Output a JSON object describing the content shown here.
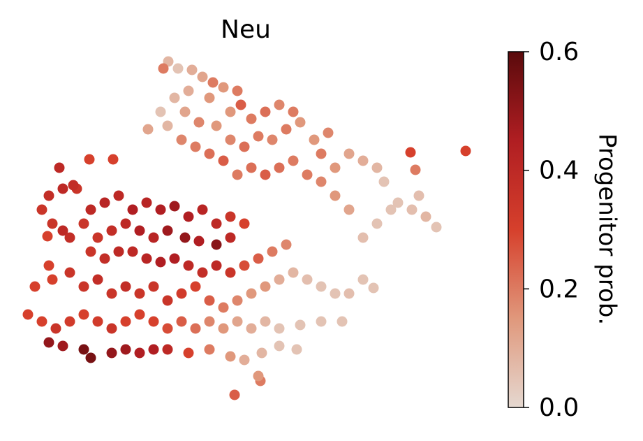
{
  "chart_data": {
    "type": "scatter",
    "title": "Neu",
    "x": [
      241,
      234,
      255,
      275,
      290,
      305,
      320,
      340,
      345,
      330,
      300,
      270,
      250,
      265,
      285,
      310,
      230,
      240,
      212,
      360,
      380,
      400,
      420,
      430,
      410,
      390,
      370,
      350,
      330,
      450,
      470,
      460,
      480,
      500,
      520,
      540,
      550,
      570,
      590,
      610,
      625,
      600,
      560,
      540,
      520,
      500,
      480,
      460,
      440,
      420,
      400,
      380,
      360,
      340,
      320,
      300,
      280,
      260,
      588,
      667,
      595,
      85,
      90,
      70,
      60,
      75,
      68,
      90,
      110,
      128,
      162,
      105,
      130,
      150,
      170,
      190,
      210,
      230,
      250,
      270,
      290,
      310,
      330,
      350,
      200,
      220,
      240,
      265,
      285,
      310,
      330,
      180,
      160,
      140,
      120,
      100,
      130,
      150,
      170,
      190,
      210,
      230,
      250,
      270,
      290,
      310,
      330,
      350,
      370,
      390,
      410,
      70,
      50,
      75,
      100,
      120,
      140,
      160,
      180,
      200,
      220,
      240,
      260,
      280,
      300,
      320,
      340,
      360,
      380,
      400,
      420,
      440,
      460,
      480,
      500,
      520,
      535,
      490,
      460,
      430,
      40,
      60,
      80,
      100,
      120,
      140,
      160,
      180,
      200,
      220,
      240,
      260,
      280,
      300,
      320,
      340,
      360,
      380,
      400,
      70,
      90,
      120,
      130,
      160,
      180,
      200,
      220,
      240,
      270,
      300,
      330,
      350,
      375,
      400,
      425,
      373,
      336,
      370
    ],
    "y": [
      88,
      98,
      98,
      100,
      110,
      118,
      125,
      130,
      150,
      160,
      140,
      130,
      140,
      160,
      175,
      180,
      160,
      180,
      185,
      170,
      160,
      150,
      160,
      175,
      185,
      200,
      195,
      210,
      200,
      200,
      190,
      220,
      240,
      220,
      230,
      240,
      260,
      290,
      300,
      310,
      325,
      280,
      300,
      320,
      340,
      300,
      280,
      260,
      250,
      230,
      240,
      250,
      240,
      250,
      230,
      220,
      210,
      200,
      218,
      216,
      243,
      240,
      270,
      280,
      300,
      320,
      338,
      330,
      270,
      228,
      228,
      265,
      300,
      290,
      280,
      300,
      290,
      300,
      295,
      310,
      300,
      320,
      310,
      320,
      330,
      340,
      330,
      340,
      345,
      350,
      340,
      320,
      330,
      340,
      320,
      340,
      360,
      370,
      360,
      360,
      370,
      375,
      370,
      380,
      390,
      380,
      390,
      380,
      370,
      360,
      350,
      380,
      410,
      400,
      390,
      410,
      400,
      420,
      410,
      420,
      410,
      430,
      420,
      410,
      430,
      440,
      430,
      420,
      410,
      400,
      390,
      400,
      410,
      420,
      420,
      400,
      412,
      460,
      460,
      465,
      450,
      460,
      470,
      460,
      450,
      460,
      470,
      460,
      450,
      460,
      470,
      460,
      470,
      460,
      470,
      460,
      470,
      460,
      470,
      490,
      495,
      500,
      512,
      505,
      500,
      505,
      500,
      500,
      505,
      500,
      510,
      515,
      505,
      495,
      500,
      545,
      565,
      538
    ],
    "values": [
      0.08,
      0.2,
      0.05,
      0.1,
      0.12,
      0.2,
      0.15,
      0.2,
      0.25,
      0.15,
      0.15,
      0.1,
      0.08,
      0.12,
      0.18,
      0.15,
      0.05,
      0.08,
      0.12,
      0.2,
      0.22,
      0.18,
      0.2,
      0.15,
      0.2,
      0.18,
      0.2,
      0.22,
      0.18,
      0.15,
      0.18,
      0.2,
      0.15,
      0.12,
      0.1,
      0.08,
      0.05,
      0.05,
      0.06,
      0.08,
      0.05,
      0.06,
      0.05,
      0.05,
      0.06,
      0.12,
      0.15,
      0.18,
      0.2,
      0.2,
      0.22,
      0.25,
      0.22,
      0.2,
      0.25,
      0.22,
      0.2,
      0.18,
      0.3,
      0.3,
      0.2,
      0.4,
      0.4,
      0.38,
      0.35,
      0.35,
      0.3,
      0.4,
      0.35,
      0.3,
      0.3,
      0.38,
      0.4,
      0.42,
      0.4,
      0.45,
      0.42,
      0.45,
      0.48,
      0.45,
      0.42,
      0.4,
      0.35,
      0.3,
      0.45,
      0.42,
      0.48,
      0.5,
      0.45,
      0.52,
      0.4,
      0.4,
      0.38,
      0.35,
      0.35,
      0.38,
      0.35,
      0.38,
      0.4,
      0.4,
      0.42,
      0.45,
      0.45,
      0.4,
      0.38,
      0.4,
      0.35,
      0.28,
      0.25,
      0.2,
      0.18,
      0.3,
      0.3,
      0.3,
      0.35,
      0.35,
      0.38,
      0.35,
      0.38,
      0.35,
      0.35,
      0.35,
      0.32,
      0.3,
      0.25,
      0.2,
      0.18,
      0.15,
      0.15,
      0.1,
      0.08,
      0.06,
      0.05,
      0.05,
      0.06,
      0.05,
      0.05,
      0.05,
      0.05,
      0.05,
      0.3,
      0.3,
      0.35,
      0.32,
      0.3,
      0.32,
      0.35,
      0.3,
      0.3,
      0.3,
      0.28,
      0.25,
      0.22,
      0.18,
      0.15,
      0.12,
      0.1,
      0.08,
      0.05,
      0.5,
      0.48,
      0.55,
      0.55,
      0.5,
      0.48,
      0.45,
      0.45,
      0.4,
      0.3,
      0.2,
      0.15,
      0.1,
      0.08,
      0.05,
      0.05,
      0.2,
      0.25,
      0.15
    ],
    "xlim": [
      0,
      700
    ],
    "ylim": [
      631,
      0
    ],
    "colormap": [
      "#e5d8d0",
      "#e0987c",
      "#d6402c",
      "#b01e22",
      "#5a0a0c"
    ],
    "colorbar_label": "Progenitor prob.",
    "clim": [
      0,
      0.6
    ],
    "cticks": [
      {
        "value": 0,
        "label": "0.0"
      },
      0.2,
      0.4,
      0.6
    ]
  }
}
